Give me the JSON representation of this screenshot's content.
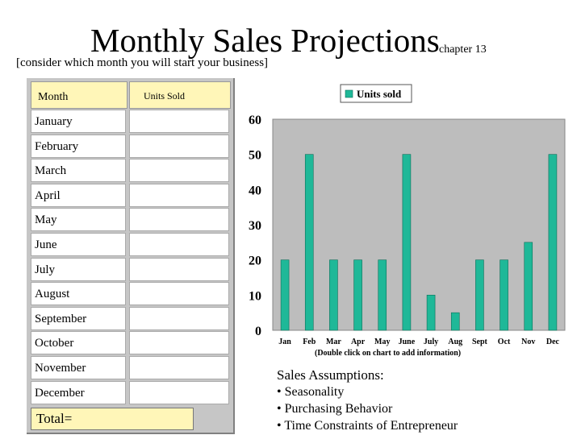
{
  "title": "Monthly Sales Projections",
  "chapter": "chapter 13",
  "subtitle": "[consider which month you will start your business]",
  "table": {
    "month_header": "Month",
    "units_header": "Units Sold",
    "months": [
      "January",
      "February",
      "March",
      "April",
      "May",
      "June",
      "July",
      "August",
      "September",
      "October",
      "November",
      "December"
    ],
    "total_label": "Total="
  },
  "chart_data": {
    "type": "bar",
    "categories": [
      "Jan",
      "Feb",
      "Mar",
      "Apr",
      "May",
      "June",
      "July",
      "Aug",
      "Sept",
      "Oct",
      "Nov",
      "Dec"
    ],
    "series": [
      {
        "name": "Units sold",
        "values": [
          20,
          50,
          20,
          20,
          20,
          50,
          10,
          5,
          20,
          20,
          25,
          50
        ]
      }
    ],
    "title": "",
    "xlabel": "",
    "ylabel": "",
    "ylim": [
      0,
      60
    ],
    "yticks": [
      0,
      10,
      20,
      30,
      40,
      50,
      60
    ],
    "legend": "top",
    "grid": false,
    "bar_color": "#1fb898",
    "plot_bg": "#bdbdbd"
  },
  "chart_note": "(Double click on chart to add information)",
  "assumptions": {
    "heading": "Sales Assumptions:",
    "items": [
      "Seasonality",
      "Purchasing Behavior",
      "Time Constraints of Entrepreneur"
    ]
  }
}
